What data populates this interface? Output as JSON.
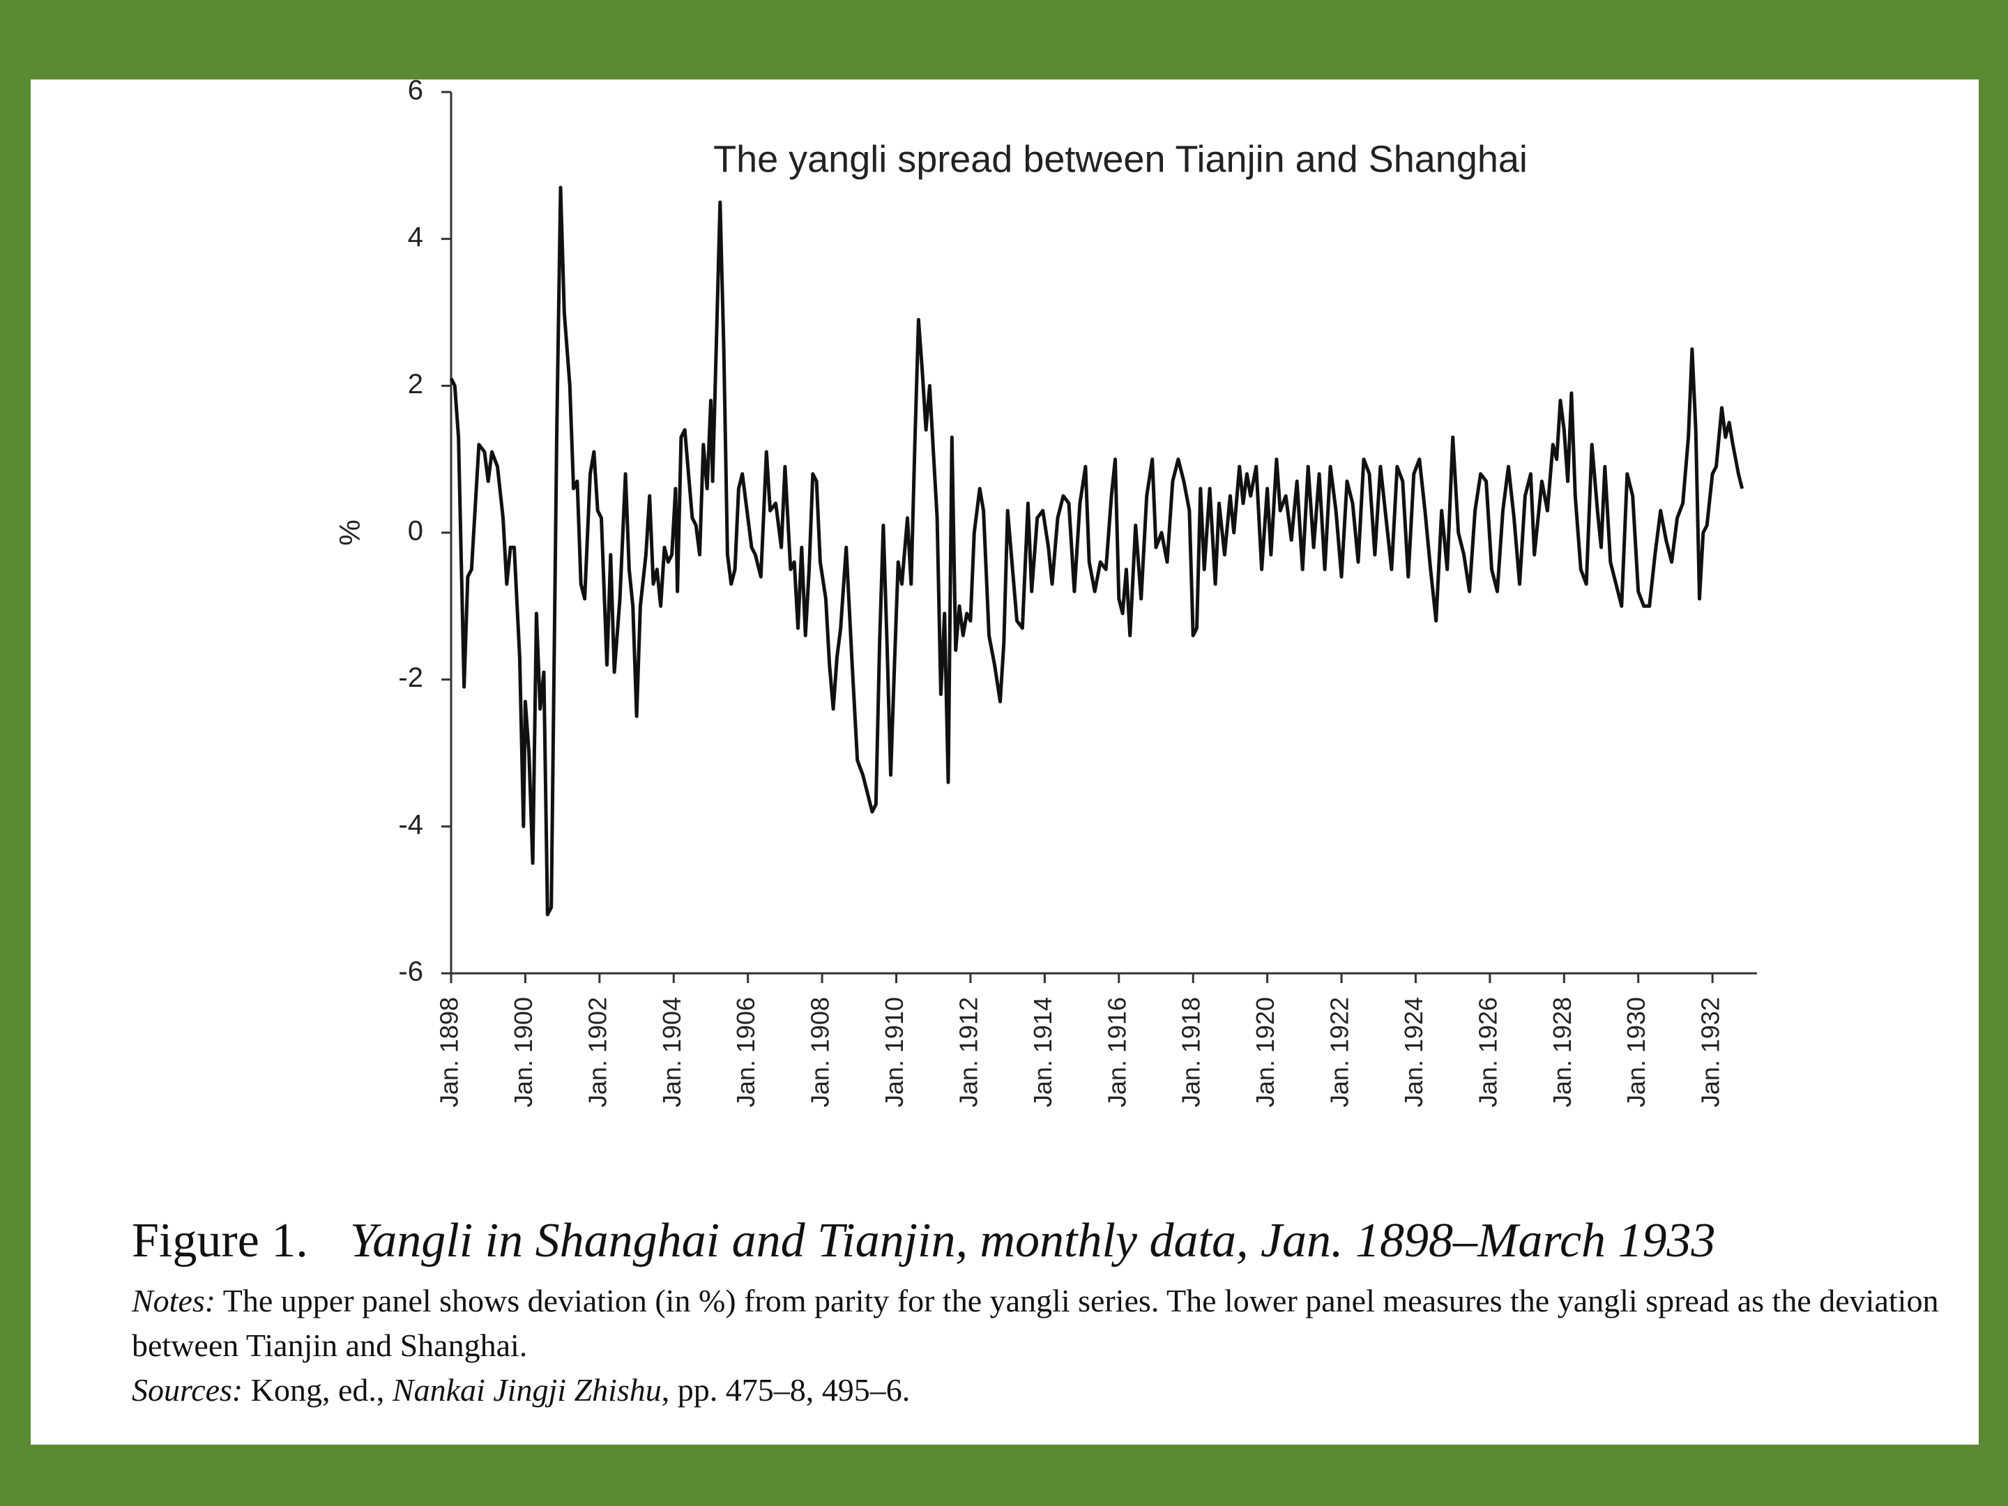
{
  "chart_data": {
    "type": "line",
    "title": "The yangli spread between Tianjin and Shanghai",
    "y_label": "%",
    "color": "#111111",
    "xlim": [
      1898,
      1933.2
    ],
    "xticks": [
      {
        "value": 1898,
        "label": "Jan. 1898"
      },
      {
        "value": 1900,
        "label": "Jan. 1900"
      },
      {
        "value": 1902,
        "label": "Jan. 1902"
      },
      {
        "value": 1904,
        "label": "Jan. 1904"
      },
      {
        "value": 1906,
        "label": "Jan. 1906"
      },
      {
        "value": 1908,
        "label": "Jan. 1908"
      },
      {
        "value": 1910,
        "label": "Jan. 1910"
      },
      {
        "value": 1912,
        "label": "Jan. 1912"
      },
      {
        "value": 1914,
        "label": "Jan. 1914"
      },
      {
        "value": 1916,
        "label": "Jan. 1916"
      },
      {
        "value": 1918,
        "label": "Jan. 1918"
      },
      {
        "value": 1920,
        "label": "Jan. 1920"
      },
      {
        "value": 1922,
        "label": "Jan. 1922"
      },
      {
        "value": 1924,
        "label": "Jan. 1924"
      },
      {
        "value": 1926,
        "label": "Jan. 1926"
      },
      {
        "value": 1928,
        "label": "Jan. 1928"
      },
      {
        "value": 1930,
        "label": "Jan. 1930"
      },
      {
        "value": 1932,
        "label": "Jan. 1932"
      }
    ],
    "ylim": [
      -6,
      6
    ],
    "yticks": [
      -6,
      -4,
      -2,
      0,
      2,
      4,
      6
    ],
    "x": [
      1898.0,
      1898.1,
      1898.2,
      1898.35,
      1898.45,
      1898.55,
      1898.75,
      1898.9,
      1899.0,
      1899.1,
      1899.25,
      1899.4,
      1899.5,
      1899.6,
      1899.7,
      1899.85,
      1899.95,
      1900.0,
      1900.1,
      1900.2,
      1900.3,
      1900.4,
      1900.5,
      1900.6,
      1900.7,
      1900.85,
      1900.95,
      1901.05,
      1901.2,
      1901.3,
      1901.4,
      1901.5,
      1901.6,
      1901.75,
      1901.85,
      1901.95,
      1902.05,
      1902.2,
      1902.3,
      1902.4,
      1902.55,
      1902.7,
      1902.8,
      1902.9,
      1903.0,
      1903.1,
      1903.25,
      1903.35,
      1903.45,
      1903.55,
      1903.65,
      1903.75,
      1903.85,
      1903.95,
      1904.05,
      1904.1,
      1904.2,
      1904.3,
      1904.4,
      1904.5,
      1904.6,
      1904.7,
      1904.8,
      1904.9,
      1905.0,
      1905.05,
      1905.15,
      1905.25,
      1905.35,
      1905.45,
      1905.55,
      1905.65,
      1905.75,
      1905.85,
      1906.0,
      1906.1,
      1906.2,
      1906.35,
      1906.5,
      1906.6,
      1906.75,
      1906.9,
      1907.0,
      1907.15,
      1907.25,
      1907.35,
      1907.45,
      1907.55,
      1907.65,
      1907.75,
      1907.85,
      1907.95,
      1908.1,
      1908.2,
      1908.3,
      1908.4,
      1908.5,
      1908.65,
      1908.8,
      1908.95,
      1909.1,
      1909.25,
      1909.35,
      1909.45,
      1909.55,
      1909.65,
      1909.75,
      1909.85,
      1909.95,
      1910.05,
      1910.15,
      1910.3,
      1910.4,
      1910.5,
      1910.6,
      1910.7,
      1910.8,
      1910.9,
      1911.0,
      1911.1,
      1911.2,
      1911.3,
      1911.4,
      1911.5,
      1911.6,
      1911.7,
      1911.8,
      1911.9,
      1912.0,
      1912.1,
      1912.25,
      1912.35,
      1912.5,
      1912.65,
      1912.8,
      1912.9,
      1913.0,
      1913.1,
      1913.25,
      1913.4,
      1913.55,
      1913.65,
      1913.8,
      1913.95,
      1914.1,
      1914.2,
      1914.35,
      1914.5,
      1914.65,
      1914.8,
      1914.95,
      1915.1,
      1915.2,
      1915.35,
      1915.5,
      1915.65,
      1915.8,
      1915.9,
      1916.0,
      1916.1,
      1916.2,
      1916.3,
      1916.45,
      1916.6,
      1916.75,
      1916.9,
      1917.0,
      1917.15,
      1917.3,
      1917.45,
      1917.6,
      1917.75,
      1917.9,
      1918.0,
      1918.1,
      1918.2,
      1918.3,
      1918.45,
      1918.6,
      1918.7,
      1918.85,
      1919.0,
      1919.1,
      1919.25,
      1919.35,
      1919.45,
      1919.55,
      1919.7,
      1919.85,
      1920.0,
      1920.1,
      1920.25,
      1920.35,
      1920.5,
      1920.65,
      1920.8,
      1920.95,
      1921.1,
      1921.25,
      1921.4,
      1921.55,
      1921.7,
      1921.85,
      1922.0,
      1922.15,
      1922.3,
      1922.45,
      1922.6,
      1922.75,
      1922.9,
      1923.05,
      1923.2,
      1923.35,
      1923.5,
      1923.65,
      1923.8,
      1923.95,
      1924.1,
      1924.25,
      1924.4,
      1924.55,
      1924.7,
      1924.85,
      1925.0,
      1925.15,
      1925.3,
      1925.45,
      1925.6,
      1925.75,
      1925.9,
      1926.05,
      1926.2,
      1926.35,
      1926.5,
      1926.65,
      1926.8,
      1926.95,
      1927.1,
      1927.2,
      1927.4,
      1927.55,
      1927.7,
      1927.8,
      1927.9,
      1928.0,
      1928.1,
      1928.2,
      1928.3,
      1928.45,
      1928.6,
      1928.75,
      1928.9,
      1929.0,
      1929.1,
      1929.25,
      1929.4,
      1929.55,
      1929.7,
      1929.85,
      1930.0,
      1930.15,
      1930.3,
      1930.45,
      1930.6,
      1930.75,
      1930.9,
      1931.05,
      1931.2,
      1931.35,
      1931.45,
      1931.55,
      1931.65,
      1931.75,
      1931.85,
      1932.0,
      1932.1,
      1932.25,
      1932.35,
      1932.45,
      1932.55,
      1932.7,
      1932.8
    ],
    "values": [
      2.1,
      2.0,
      1.3,
      -2.1,
      -0.6,
      -0.5,
      1.2,
      1.1,
      0.7,
      1.1,
      0.9,
      0.2,
      -0.7,
      -0.2,
      -0.2,
      -1.7,
      -4.0,
      -2.3,
      -3.0,
      -4.5,
      -1.1,
      -2.4,
      -1.9,
      -5.2,
      -5.1,
      1.4,
      4.7,
      3.0,
      2.0,
      0.6,
      0.7,
      -0.7,
      -0.9,
      0.8,
      1.1,
      0.3,
      0.2,
      -1.8,
      -0.3,
      -1.9,
      -0.9,
      0.8,
      -0.5,
      -1.0,
      -2.5,
      -1.0,
      -0.3,
      0.5,
      -0.7,
      -0.5,
      -1.0,
      -0.2,
      -0.4,
      -0.3,
      0.6,
      -0.8,
      1.3,
      1.4,
      0.8,
      0.2,
      0.1,
      -0.3,
      1.2,
      0.6,
      1.8,
      0.7,
      2.6,
      4.5,
      2.5,
      -0.3,
      -0.7,
      -0.5,
      0.6,
      0.8,
      0.2,
      -0.2,
      -0.3,
      -0.6,
      1.1,
      0.3,
      0.4,
      -0.2,
      0.9,
      -0.5,
      -0.4,
      -1.3,
      -0.2,
      -1.4,
      -0.5,
      0.8,
      0.7,
      -0.4,
      -0.9,
      -1.8,
      -2.4,
      -1.7,
      -1.3,
      -0.2,
      -1.7,
      -3.1,
      -3.3,
      -3.6,
      -3.8,
      -3.7,
      -1.5,
      0.1,
      -1.5,
      -3.3,
      -1.8,
      -0.4,
      -0.7,
      0.2,
      -0.7,
      1.2,
      2.9,
      2.2,
      1.4,
      2.0,
      1.1,
      0.2,
      -2.2,
      -1.1,
      -3.4,
      1.3,
      -1.6,
      -1.0,
      -1.4,
      -1.1,
      -1.2,
      0.0,
      0.6,
      0.3,
      -1.4,
      -1.8,
      -2.3,
      -1.5,
      0.3,
      -0.3,
      -1.2,
      -1.3,
      0.4,
      -0.8,
      0.2,
      0.3,
      -0.2,
      -0.7,
      0.2,
      0.5,
      0.4,
      -0.8,
      0.4,
      0.9,
      -0.4,
      -0.8,
      -0.4,
      -0.5,
      0.5,
      1.0,
      -0.9,
      -1.1,
      -0.5,
      -1.4,
      0.1,
      -0.9,
      0.5,
      1.0,
      -0.2,
      0.0,
      -0.4,
      0.7,
      1.0,
      0.7,
      0.3,
      -1.4,
      -1.3,
      0.6,
      -0.5,
      0.6,
      -0.7,
      0.4,
      -0.3,
      0.5,
      0.0,
      0.9,
      0.4,
      0.8,
      0.5,
      0.9,
      -0.5,
      0.6,
      -0.3,
      1.0,
      0.3,
      0.5,
      -0.1,
      0.7,
      -0.5,
      0.9,
      -0.2,
      0.8,
      -0.5,
      0.9,
      0.3,
      -0.6,
      0.7,
      0.4,
      -0.4,
      1.0,
      0.8,
      -0.3,
      0.9,
      0.2,
      -0.5,
      0.9,
      0.7,
      -0.6,
      0.8,
      1.0,
      0.3,
      -0.5,
      -1.2,
      0.3,
      -0.5,
      1.3,
      0.0,
      -0.3,
      -0.8,
      0.3,
      0.8,
      0.7,
      -0.5,
      -0.8,
      0.3,
      0.9,
      0.2,
      -0.7,
      0.5,
      0.8,
      -0.3,
      0.7,
      0.3,
      1.2,
      1.0,
      1.8,
      1.4,
      0.7,
      1.9,
      0.5,
      -0.5,
      -0.7,
      1.2,
      0.3,
      -0.2,
      0.9,
      -0.4,
      -0.7,
      -1.0,
      0.8,
      0.5,
      -0.8,
      -1.0,
      -1.0,
      -0.3,
      0.3,
      -0.1,
      -0.4,
      0.2,
      0.4,
      1.3,
      2.5,
      1.4,
      -0.9,
      0.0,
      0.1,
      0.8,
      0.9,
      1.7,
      1.3,
      1.5,
      1.2,
      0.8,
      0.6
    ]
  },
  "caption": {
    "label": "Figure 1.",
    "title": "Yangli in Shanghai and Tianjin, monthly data, Jan. 1898–March 1933"
  },
  "notes": {
    "label": "Notes:",
    "text": " The upper panel shows deviation (in %) from parity for the yangli series. The lower panel measures the yangli spread as the deviation between Tianjin and Shanghai."
  },
  "sources": {
    "label": "Sources:",
    "text_before": " Kong, ed., ",
    "title": "Nankai Jingji Zhishu",
    "text_after": ", pp. 475–8, 495–6."
  }
}
